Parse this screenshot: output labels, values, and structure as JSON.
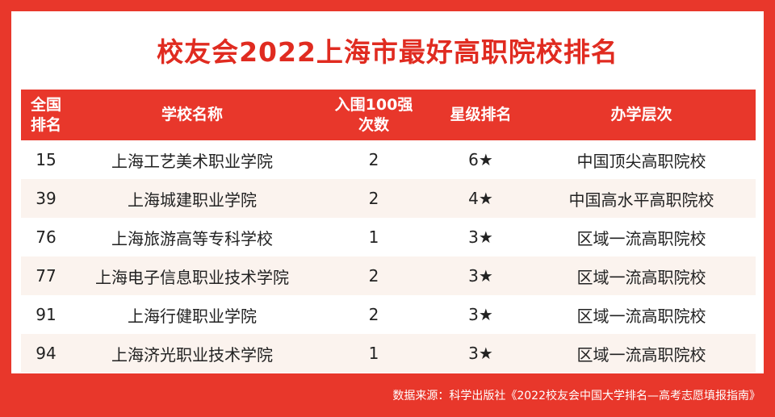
{
  "title": "校友会2022上海市最好高职院校排名",
  "headers": [
    "全国\n排名",
    "学校名称",
    "入围100强\n次数",
    "星级排名",
    "办学层次"
  ],
  "rows": [
    {
      "rank": "15",
      "name": "上海工艺美术职业学院",
      "times": "2",
      "stars": "6★",
      "level": "中国顶尖高职院校"
    },
    {
      "rank": "39",
      "name": "上海城建职业学院",
      "times": "2",
      "stars": "4★",
      "level": "中国高水平高职院校"
    },
    {
      "rank": "76",
      "name": "上海旅游高等专科学校",
      "times": "1",
      "stars": "3★",
      "level": "区域一流高职院校"
    },
    {
      "rank": "77",
      "name": "上海电子信息职业技术学院",
      "times": "2",
      "stars": "3★",
      "level": "区域一流高职院校"
    },
    {
      "rank": "91",
      "name": "上海行健职业学院",
      "times": "2",
      "stars": "3★",
      "level": "区域一流高职院校"
    },
    {
      "rank": "94",
      "name": "上海济光职业技术学院",
      "times": "1",
      "stars": "3★",
      "level": "区域一流高职院校"
    }
  ],
  "footer": "数据来源：科学出版社《2022校友会中国大学排名—高考志愿填报指南》",
  "colors": {
    "accent": "#e8372b",
    "row_alt": "#fbf3ee"
  }
}
